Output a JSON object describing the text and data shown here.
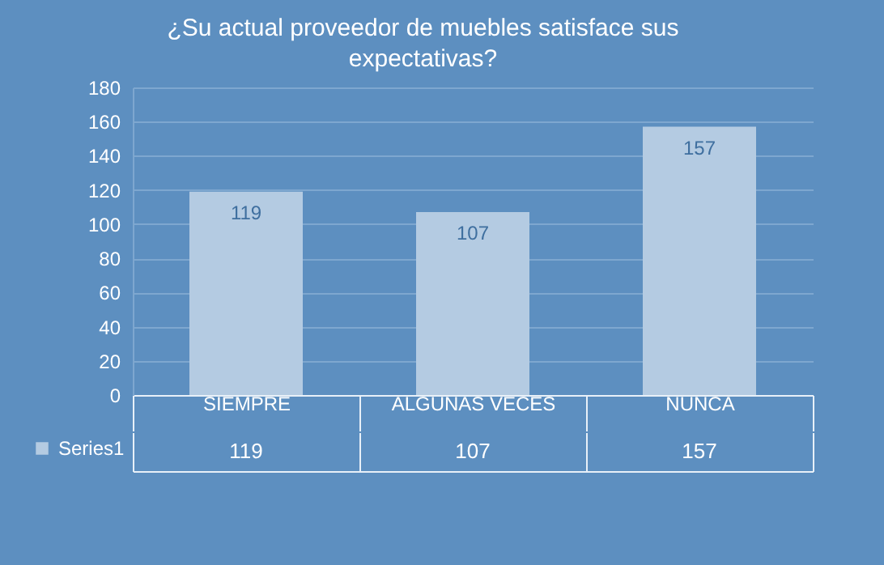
{
  "chart_data": {
    "type": "bar",
    "title": "¿Su actual proveedor de muebles satisface sus expectativas?",
    "categories": [
      "SIEMPRE",
      "ALGUNAS VECES",
      "NUNCA"
    ],
    "series": [
      {
        "name": "Series1",
        "color": "#b4cbe2",
        "values": [
          119,
          107,
          157
        ]
      }
    ],
    "ylim": [
      0,
      180
    ],
    "yticks": [
      0,
      20,
      40,
      60,
      80,
      100,
      120,
      140,
      160,
      180
    ],
    "annotations": [
      "119",
      "107",
      "157"
    ],
    "grid": "y",
    "data_labels": true,
    "legend": "bottom left"
  }
}
